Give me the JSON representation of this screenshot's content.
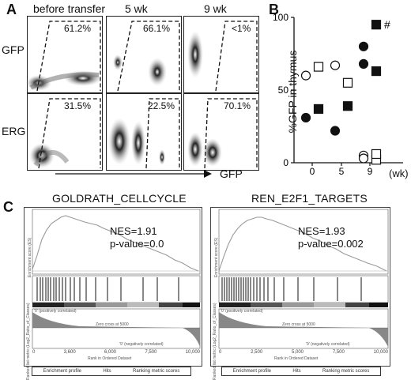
{
  "panel_a": {
    "label": "A",
    "columns": [
      "before transfer",
      "5 wk",
      "9 wk"
    ],
    "rows": [
      "GFP",
      "ERG"
    ],
    "percentages": [
      [
        "61.2%",
        "66.1%",
        "<1%"
      ],
      [
        "31.5%",
        "22.5%",
        "70.1%"
      ]
    ],
    "x_axis_label": "GFP"
  },
  "panel_b": {
    "label": "B",
    "y_label": "%GFP in thymus",
    "y_ticks": [
      "0",
      "50",
      "100"
    ],
    "x_ticks": [
      "0",
      "5",
      "9"
    ],
    "x_unit": "(wk)",
    "marker_hash": "#"
  },
  "chart_data": {
    "type": "scatter",
    "ylabel": "%GFP in thymus",
    "xlabel": "(wk)",
    "ylim": [
      0,
      100
    ],
    "categories": [
      "0",
      "5",
      "9"
    ],
    "series": [
      {
        "marker": "open-circle",
        "points": [
          [
            0,
            60
          ],
          [
            5,
            67
          ],
          [
            9,
            5
          ]
        ]
      },
      {
        "marker": "open-square",
        "points": [
          [
            0,
            66
          ],
          [
            5,
            55
          ],
          [
            9,
            2
          ]
        ]
      },
      {
        "marker": "filled-circle",
        "points": [
          [
            0,
            31
          ],
          [
            5,
            22
          ],
          [
            9,
            68
          ]
        ]
      },
      {
        "marker": "filled-square",
        "points": [
          [
            0,
            37
          ],
          [
            5,
            39
          ],
          [
            9,
            63
          ]
        ]
      },
      {
        "marker": "open-circle",
        "points": [
          [
            9,
            3
          ]
        ]
      },
      {
        "marker": "open-square",
        "points": [
          [
            9,
            6
          ]
        ]
      },
      {
        "marker": "filled-square",
        "points": [
          [
            9,
            95
          ]
        ]
      },
      {
        "marker": "filled-circle",
        "points": [
          [
            9,
            80
          ]
        ]
      }
    ]
  },
  "panel_c": {
    "label": "C",
    "left": {
      "title": "GOLDRATH_CELLCYCLE",
      "nes": "NES=1.91",
      "pvalue": "p-value=0.0",
      "x_ticks": [
        "0",
        "3,600",
        "6,000",
        "7,500",
        "10,000"
      ],
      "x_label": "Rank in Ordered Dataset",
      "y_label_top": "Enrichment score (ES)",
      "y_label_bottom": "Ranked list metric (Log2_Ratio_of_Classes)",
      "pos_label": "'0' (positively correlated)",
      "neg_label": "'9' (negatively correlated)",
      "zero_label": "Zero cross at 5000",
      "legend": [
        "Enrichment profile",
        "Hits",
        "Ranking metric scores"
      ]
    },
    "right": {
      "title": "REN_E2F1_TARGETS",
      "nes": "NES=1.93",
      "pvalue": "p-value=0.002",
      "x_ticks": [
        "0",
        "2,500",
        "5,000",
        "7,500",
        "10,000"
      ],
      "x_label": "Rank in Ordered Dataset",
      "y_label_top": "Enrichment score (ES)",
      "y_label_bottom": "Ranked list metric (Log2_Ratio_of_Classes)",
      "pos_label": "'0' (positively correlated)",
      "neg_label": "'9' (negatively correlated)",
      "zero_label": "Zero cross at 5000",
      "legend": [
        "Enrichment profile",
        "Hits",
        "Ranking metric scores"
      ]
    }
  }
}
